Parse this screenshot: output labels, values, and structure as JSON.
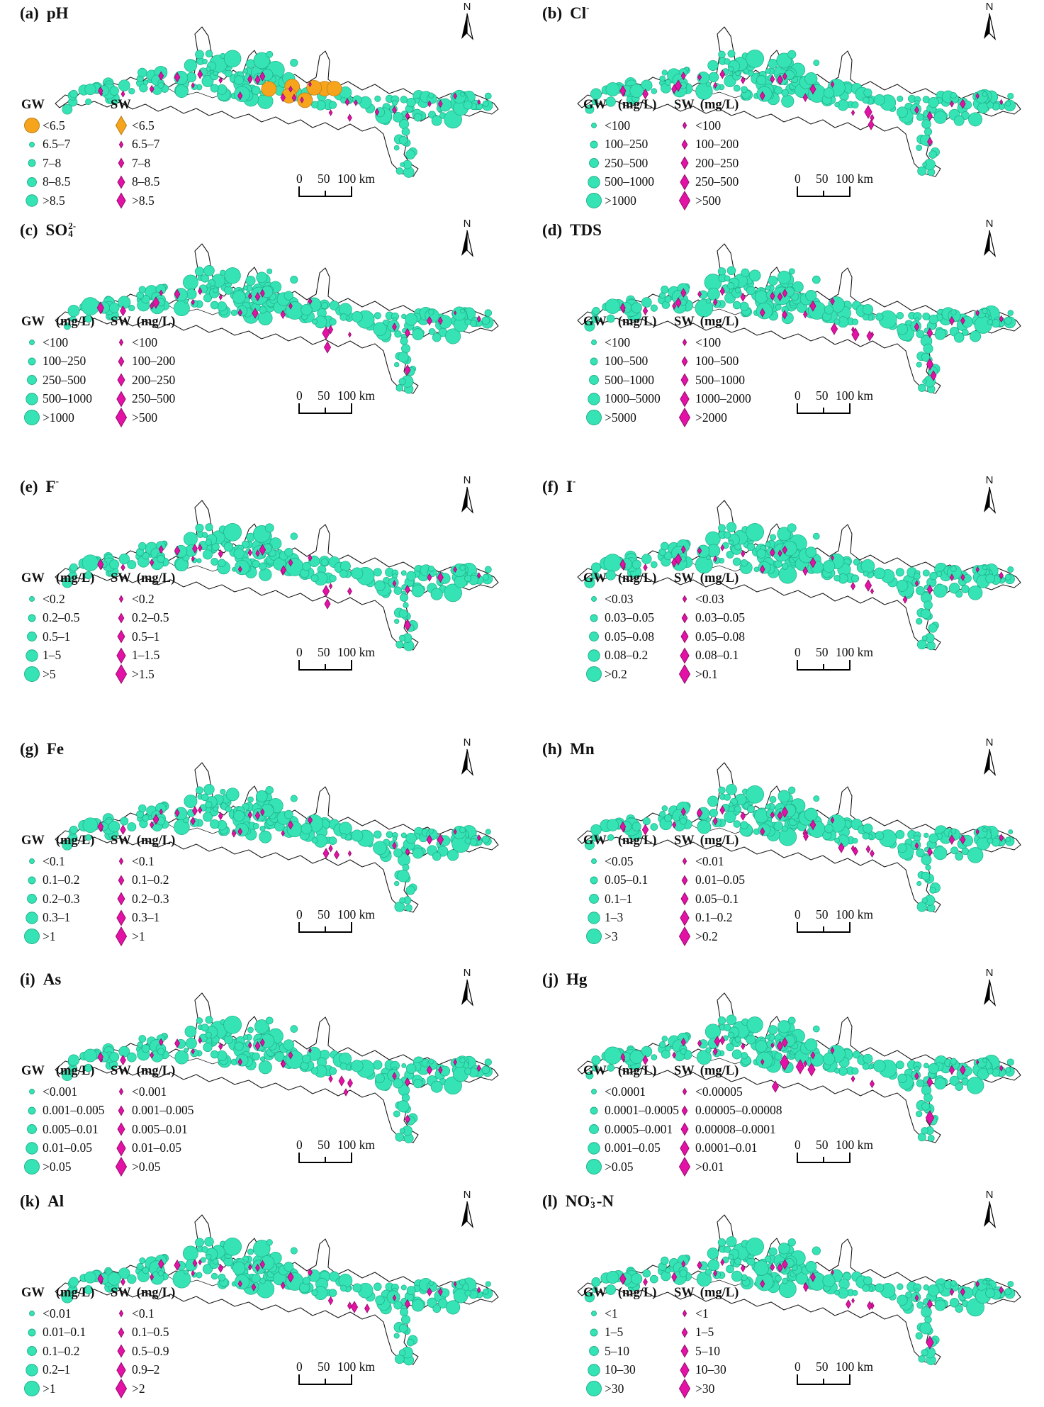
{
  "colors": {
    "gw": "#35E3B5",
    "gw_stroke": "#1FAE88",
    "sw": "#E411A6",
    "sw_stroke": "#8F0D68",
    "low_ph": "#F6A41C",
    "low_ph_stroke": "#B87A12",
    "outline": "#1A1A1A"
  },
  "north_label": "N",
  "scalebar": {
    "zero": "0",
    "fifty": "50",
    "hundred": "100 km"
  },
  "legend_labels": {
    "gw": "GW",
    "sw": "SW",
    "unit": "(mg/L)"
  },
  "panels": [
    {
      "id": "a",
      "letter": "(a)",
      "name": "pH",
      "sub": "",
      "sup": "",
      "post": "",
      "unit": false,
      "special": "ph",
      "gw": [
        "<6.5",
        "6.5–7",
        "7–8",
        "8–8.5",
        ">8.5"
      ],
      "sw": [
        "<6.5",
        "6.5–7",
        "7–8",
        "8–8.5",
        ">8.5"
      ]
    },
    {
      "id": "b",
      "letter": "(b)",
      "name": "Cl",
      "sub": "",
      "sup": "-",
      "post": "",
      "unit": true,
      "gw": [
        "<100",
        "100–250",
        "250–500",
        "500–1000",
        ">1000"
      ],
      "sw": [
        "<100",
        "100–200",
        "200–250",
        "250–500",
        ">500"
      ]
    },
    {
      "id": "c",
      "letter": "(c)",
      "name": "SO",
      "sub": "4",
      "sup": "2-",
      "post": "",
      "unit": true,
      "gw": [
        "<100",
        "100–250",
        "250–500",
        "500–1000",
        ">1000"
      ],
      "sw": [
        "<100",
        "100–200",
        "200–250",
        "250–500",
        ">500"
      ]
    },
    {
      "id": "d",
      "letter": "(d)",
      "name": "TDS",
      "sub": "",
      "sup": "",
      "post": "",
      "unit": true,
      "gw": [
        "<100",
        "100–500",
        "500–1000",
        "1000–5000",
        ">5000"
      ],
      "sw": [
        "<100",
        "100–500",
        "500–1000",
        "1000–2000",
        ">2000"
      ]
    },
    {
      "id": "e",
      "letter": "(e)",
      "name": "F",
      "sub": "",
      "sup": "-",
      "post": "",
      "unit": true,
      "gw": [
        "<0.2",
        "0.2–0.5",
        "0.5–1",
        "1–5",
        ">5"
      ],
      "sw": [
        "<0.2",
        "0.2–0.5",
        "0.5–1",
        "1–1.5",
        ">1.5"
      ]
    },
    {
      "id": "f",
      "letter": "(f)",
      "name": "I",
      "sub": "",
      "sup": "-",
      "post": "",
      "unit": true,
      "gw": [
        "<0.03",
        "0.03–0.05",
        "0.05–0.08",
        "0.08–0.2",
        ">0.2"
      ],
      "sw": [
        "<0.03",
        "0.03–0.05",
        "0.05–0.08",
        "0.08–0.1",
        ">0.1"
      ]
    },
    {
      "id": "g",
      "letter": "(g)",
      "name": "Fe",
      "sub": "",
      "sup": "",
      "post": "",
      "unit": true,
      "gw": [
        "<0.1",
        "0.1–0.2",
        "0.2–0.3",
        "0.3–1",
        ">1"
      ],
      "sw": [
        "<0.1",
        "0.1–0.2",
        "0.2–0.3",
        "0.3–1",
        ">1"
      ]
    },
    {
      "id": "h",
      "letter": "(h)",
      "name": "Mn",
      "sub": "",
      "sup": "",
      "post": "",
      "unit": true,
      "gw": [
        "<0.05",
        "0.05–0.1",
        "0.1–1",
        "1–3",
        ">3"
      ],
      "sw": [
        "<0.01",
        "0.01–0.05",
        "0.05–0.1",
        "0.1–0.2",
        ">0.2"
      ]
    },
    {
      "id": "i",
      "letter": "(i)",
      "name": "As",
      "sub": "",
      "sup": "",
      "post": "",
      "unit": true,
      "gw": [
        "<0.001",
        "0.001–0.005",
        "0.005–0.01",
        "0.01–0.05",
        ">0.05"
      ],
      "sw": [
        "<0.001",
        "0.001–0.005",
        "0.005–0.01",
        "0.01–0.05",
        ">0.05"
      ]
    },
    {
      "id": "j",
      "letter": "(j)",
      "name": "Hg",
      "sub": "",
      "sup": "",
      "post": "",
      "unit": true,
      "gw": [
        "<0.0001",
        "0.0001–0.0005",
        "0.0005–0.001",
        "0.001–0.05",
        ">0.05"
      ],
      "sw": [
        "<0.00005",
        "0.00005–0.00008",
        "0.00008–0.0001",
        "0.0001–0.01",
        ">0.01"
      ]
    },
    {
      "id": "k",
      "letter": "(k)",
      "name": "Al",
      "sub": "",
      "sup": "",
      "post": "",
      "unit": true,
      "gw": [
        "<0.01",
        "0.01–0.1",
        "0.1–0.2",
        "0.2–1",
        ">1"
      ],
      "sw": [
        "<0.1",
        "0.1–0.5",
        "0.5–0.9",
        "0.9–2",
        ">2"
      ]
    },
    {
      "id": "l",
      "letter": "(l)",
      "name": "NO",
      "sub": "3",
      "sup": "-",
      "post": "-N",
      "unit": true,
      "gw": [
        "<1",
        "1–5",
        "5–10",
        "10–30",
        ">30"
      ],
      "sw": [
        "<1",
        "1–5",
        "5–10",
        "10–30",
        ">30"
      ]
    }
  ]
}
